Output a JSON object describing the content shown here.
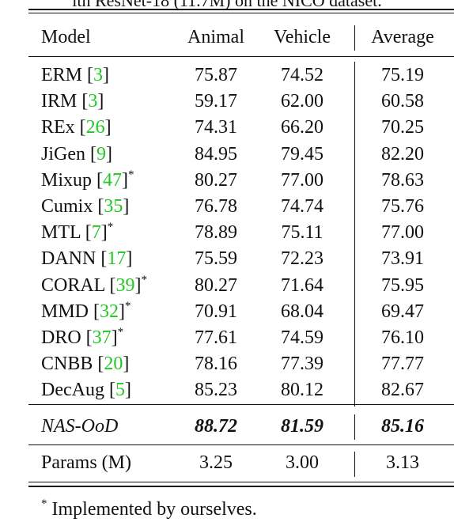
{
  "caption_fragment": "ith ResNet-18 (11.7M) on the NICO dataset.",
  "headers": {
    "model": "Model",
    "animal": "Animal",
    "vehicle": "Vehicle",
    "average": "Average"
  },
  "rows": [
    {
      "name": "ERM",
      "cite": "3",
      "star": "",
      "animal": "75.87",
      "vehicle": "74.52",
      "average": "75.19"
    },
    {
      "name": "IRM",
      "cite": "3",
      "star": "",
      "animal": "59.17",
      "vehicle": "62.00",
      "average": "60.58"
    },
    {
      "name": "REx",
      "cite": "26",
      "star": "",
      "animal": "74.31",
      "vehicle": "66.20",
      "average": "70.25"
    },
    {
      "name": "JiGen",
      "cite": "9",
      "star": "",
      "animal": "84.95",
      "vehicle": "79.45",
      "average": "82.20"
    },
    {
      "name": "Mixup",
      "cite": "47",
      "star": "*",
      "animal": "80.27",
      "vehicle": "77.00",
      "average": "78.63"
    },
    {
      "name": "Cumix",
      "cite": "35",
      "star": "",
      "animal": "76.78",
      "vehicle": "74.74",
      "average": "75.76"
    },
    {
      "name": "MTL",
      "cite": "7",
      "star": "*",
      "animal": "78.89",
      "vehicle": "75.11",
      "average": "77.00"
    },
    {
      "name": "DANN",
      "cite": "17",
      "star": "",
      "animal": "75.59",
      "vehicle": "72.23",
      "average": "73.91"
    },
    {
      "name": "CORAL",
      "cite": "39",
      "star": "*",
      "animal": "80.27",
      "vehicle": "71.64",
      "average": "75.95"
    },
    {
      "name": "MMD",
      "cite": "32",
      "star": "*",
      "animal": "70.91",
      "vehicle": "68.04",
      "average": "69.47"
    },
    {
      "name": "DRO",
      "cite": "37",
      "star": "*",
      "animal": "77.61",
      "vehicle": "74.59",
      "average": "76.10"
    },
    {
      "name": "CNBB",
      "cite": "20",
      "star": "",
      "animal": "78.16",
      "vehicle": "77.39",
      "average": "77.77"
    },
    {
      "name": "DecAug",
      "cite": "5",
      "star": "",
      "animal": "85.23",
      "vehicle": "80.12",
      "average": "82.67"
    }
  ],
  "ours": {
    "name": "NAS-OoD",
    "animal": "88.72",
    "vehicle": "81.59",
    "average": "85.16"
  },
  "params": {
    "name": "Params (M)",
    "animal": "3.25",
    "vehicle": "3.00",
    "average": "3.13"
  },
  "footnote": {
    "mark": "*",
    "text": "Implemented by ourselves."
  }
}
